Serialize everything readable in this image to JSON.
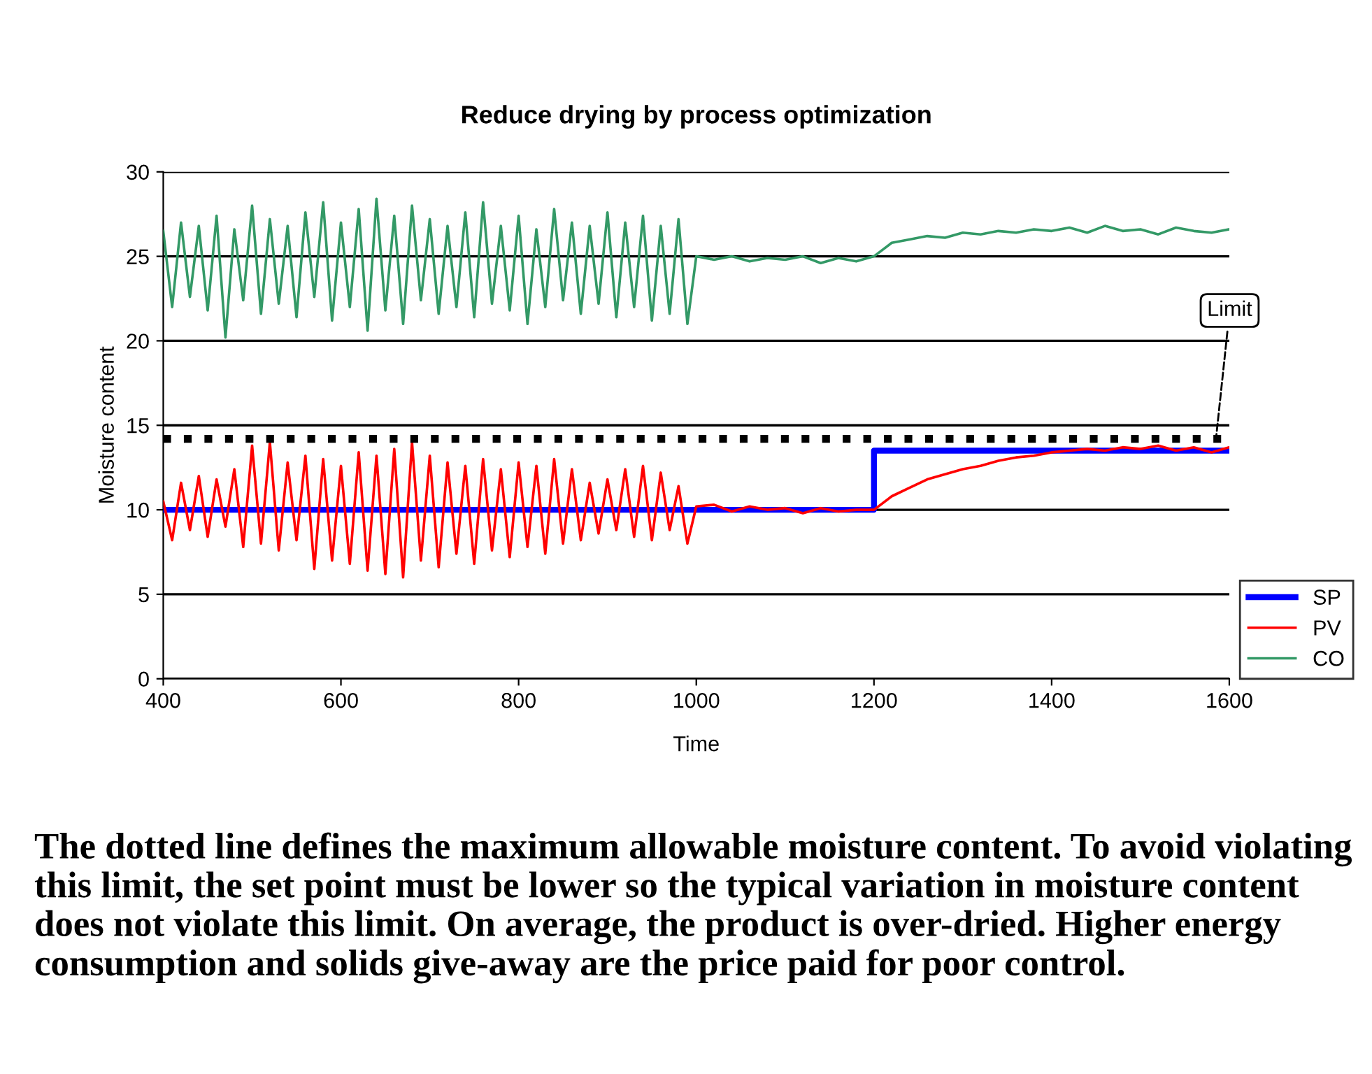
{
  "chart_data": {
    "type": "line",
    "title": "Reduce drying by process optimization",
    "xlabel": "Time",
    "ylabel": "Moisture content",
    "x": [
      400,
      410,
      420,
      430,
      440,
      450,
      460,
      470,
      480,
      490,
      500,
      510,
      520,
      530,
      540,
      550,
      560,
      570,
      580,
      590,
      600,
      610,
      620,
      630,
      640,
      650,
      660,
      670,
      680,
      690,
      700,
      710,
      720,
      730,
      740,
      750,
      760,
      770,
      780,
      790,
      800,
      810,
      820,
      830,
      840,
      850,
      860,
      870,
      880,
      890,
      900,
      910,
      920,
      930,
      940,
      950,
      960,
      970,
      980,
      990,
      1000,
      1020,
      1040,
      1060,
      1080,
      1100,
      1120,
      1140,
      1160,
      1180,
      1200,
      1220,
      1240,
      1260,
      1280,
      1300,
      1320,
      1340,
      1360,
      1380,
      1400,
      1420,
      1440,
      1460,
      1480,
      1500,
      1520,
      1540,
      1560,
      1580,
      1600
    ],
    "series": [
      {
        "name": "SP",
        "color": "#0000ff",
        "x": [
          400,
          1200,
          1200,
          1600
        ],
        "values": [
          10,
          10,
          13.5,
          13.5
        ]
      },
      {
        "name": "PV",
        "color": "#ff0000",
        "values": [
          10.5,
          8.2,
          11.6,
          8.8,
          12.0,
          8.4,
          11.8,
          9.0,
          12.4,
          7.8,
          13.8,
          8.0,
          14.0,
          7.6,
          12.8,
          8.2,
          13.2,
          6.5,
          13.0,
          7.0,
          12.6,
          6.8,
          13.4,
          6.4,
          13.2,
          6.2,
          13.6,
          6.0,
          14.0,
          7.0,
          13.2,
          6.6,
          12.8,
          7.4,
          12.6,
          6.8,
          13.0,
          7.6,
          12.4,
          7.2,
          12.8,
          7.8,
          12.6,
          7.4,
          13.0,
          8.0,
          12.4,
          8.2,
          11.6,
          8.6,
          11.8,
          8.8,
          12.4,
          8.4,
          12.6,
          8.2,
          12.2,
          8.8,
          11.4,
          8.0,
          10.2,
          10.3,
          9.9,
          10.2,
          10.0,
          10.1,
          9.8,
          10.1,
          9.9,
          10.0,
          10.0,
          10.8,
          11.3,
          11.8,
          12.1,
          12.4,
          12.6,
          12.9,
          13.1,
          13.2,
          13.4,
          13.5,
          13.6,
          13.5,
          13.7,
          13.6,
          13.8,
          13.5,
          13.7,
          13.4,
          13.7
        ]
      },
      {
        "name": "CO",
        "color": "#339966",
        "values": [
          26.5,
          22.0,
          27.0,
          22.6,
          26.8,
          21.8,
          27.4,
          20.2,
          26.6,
          22.4,
          28.0,
          21.6,
          27.2,
          22.2,
          26.8,
          21.4,
          27.6,
          22.6,
          28.2,
          21.2,
          27.0,
          22.0,
          27.8,
          20.6,
          28.4,
          21.8,
          27.4,
          21.0,
          28.0,
          22.4,
          27.2,
          21.6,
          26.8,
          22.0,
          27.6,
          21.4,
          28.2,
          22.2,
          26.8,
          21.8,
          27.4,
          21.0,
          26.6,
          22.0,
          27.8,
          22.4,
          27.0,
          21.6,
          26.8,
          22.2,
          27.6,
          21.4,
          27.0,
          22.0,
          27.4,
          21.2,
          26.8,
          21.6,
          27.2,
          21.0,
          25.0,
          24.8,
          25.0,
          24.7,
          24.9,
          24.8,
          25.0,
          24.6,
          24.9,
          24.7,
          25.0,
          25.8,
          26.0,
          26.2,
          26.1,
          26.4,
          26.3,
          26.5,
          26.4,
          26.6,
          26.5,
          26.7,
          26.4,
          26.8,
          26.5,
          26.6,
          26.3,
          26.7,
          26.5,
          26.4,
          26.6
        ]
      }
    ],
    "ref_lines": [
      {
        "axis": "y",
        "value": 14.2,
        "label": "Limit",
        "color": "#000000",
        "line_style": "dotted"
      }
    ],
    "xlim": [
      400,
      1600
    ],
    "ylim": [
      0,
      30
    ],
    "xticks": [
      400,
      600,
      800,
      1000,
      1200,
      1400,
      1600
    ],
    "yticks": [
      0,
      5,
      10,
      15,
      20,
      25,
      30
    ],
    "grid": "y",
    "legend": "bottom right",
    "marker": "none",
    "line_style": "solid",
    "annotations": [
      "The dotted line defines the maximum allowable moisture content. To avoid violating this limit, the set point must be lower so the typical variation in moisture content does not violate this limit. On average, the product is over-dried. Higher energy consumption and solids give-away are the price paid for poor control."
    ]
  }
}
